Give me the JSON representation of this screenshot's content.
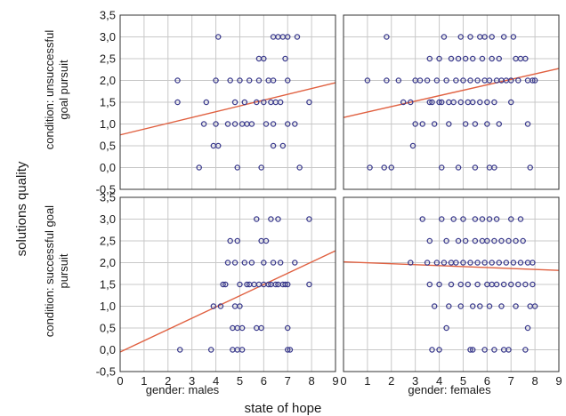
{
  "chart_data": {
    "type": "scatter",
    "ylabel": "solutions quality",
    "xlabel": "state of hope",
    "rows": [
      "condition: unsuccessful goal pursuit",
      "condition: successful goal pursuit"
    ],
    "columns": [
      "gender: males",
      "gender: females"
    ],
    "xlim": [
      0,
      9
    ],
    "ylim": [
      -0.5,
      3.5
    ],
    "xticks": [
      "0",
      "1",
      "2",
      "3",
      "4",
      "5",
      "6",
      "7",
      "8",
      "9"
    ],
    "yticks": [
      "-0,5",
      "0,0",
      "0,5",
      "1,0",
      "1,5",
      "2,0",
      "2,5",
      "3,0",
      "3,5"
    ],
    "grid": true,
    "colors": {
      "points": "#3a3a8c",
      "regression": "#e06040",
      "grid": "#c8c8c8",
      "frame": "#333333"
    },
    "panels": [
      {
        "row": 0,
        "col": 0,
        "regression": {
          "intercept": 0.75,
          "slope": 0.133
        },
        "points": [
          [
            2.4,
            2.0
          ],
          [
            2.4,
            1.5
          ],
          [
            3.5,
            1.0
          ],
          [
            3.3,
            0.0
          ],
          [
            3.6,
            1.5
          ],
          [
            3.9,
            0.5
          ],
          [
            4.1,
            0.5
          ],
          [
            4.0,
            1.0
          ],
          [
            4.0,
            2.0
          ],
          [
            4.1,
            3.0
          ],
          [
            4.5,
            1.0
          ],
          [
            4.6,
            2.0
          ],
          [
            4.8,
            1.5
          ],
          [
            4.8,
            1.0
          ],
          [
            4.9,
            0.0
          ],
          [
            5.0,
            2.0
          ],
          [
            5.1,
            1.0
          ],
          [
            5.2,
            1.5
          ],
          [
            5.3,
            1.0
          ],
          [
            5.4,
            2.0
          ],
          [
            5.5,
            1.0
          ],
          [
            5.7,
            1.5
          ],
          [
            5.8,
            2.0
          ],
          [
            5.8,
            2.5
          ],
          [
            5.9,
            0.0
          ],
          [
            6.0,
            1.5
          ],
          [
            6.0,
            2.5
          ],
          [
            6.1,
            1.0
          ],
          [
            6.2,
            2.0
          ],
          [
            6.3,
            1.5
          ],
          [
            6.4,
            2.0
          ],
          [
            6.4,
            0.5
          ],
          [
            6.4,
            1.0
          ],
          [
            6.4,
            3.0
          ],
          [
            6.5,
            1.5
          ],
          [
            6.6,
            3.0
          ],
          [
            6.7,
            1.5
          ],
          [
            6.8,
            0.5
          ],
          [
            6.8,
            3.0
          ],
          [
            6.9,
            2.5
          ],
          [
            7.0,
            3.0
          ],
          [
            7.0,
            1.0
          ],
          [
            7.0,
            2.0
          ],
          [
            7.3,
            1.0
          ],
          [
            7.4,
            3.0
          ],
          [
            7.5,
            0.0
          ],
          [
            7.9,
            1.5
          ]
        ]
      },
      {
        "row": 0,
        "col": 1,
        "regression": {
          "intercept": 1.15,
          "slope": 0.125
        },
        "points": [
          [
            1.0,
            2.0
          ],
          [
            1.1,
            0.0
          ],
          [
            1.7,
            0.0
          ],
          [
            1.8,
            3.0
          ],
          [
            1.8,
            2.0
          ],
          [
            2.0,
            0.0
          ],
          [
            2.3,
            2.0
          ],
          [
            2.5,
            1.5
          ],
          [
            2.8,
            1.5
          ],
          [
            2.9,
            0.5
          ],
          [
            3.0,
            2.0
          ],
          [
            3.0,
            1.0
          ],
          [
            3.2,
            2.0
          ],
          [
            3.3,
            1.0
          ],
          [
            3.5,
            2.0
          ],
          [
            3.6,
            1.5
          ],
          [
            3.6,
            2.5
          ],
          [
            3.7,
            1.5
          ],
          [
            3.8,
            1.0
          ],
          [
            3.9,
            2.0
          ],
          [
            4.0,
            1.5
          ],
          [
            4.0,
            2.5
          ],
          [
            4.1,
            1.5
          ],
          [
            4.1,
            0.0
          ],
          [
            4.2,
            3.0
          ],
          [
            4.3,
            2.0
          ],
          [
            4.4,
            1.5
          ],
          [
            4.4,
            1.0
          ],
          [
            4.5,
            2.5
          ],
          [
            4.6,
            1.5
          ],
          [
            4.7,
            2.0
          ],
          [
            4.8,
            2.5
          ],
          [
            4.8,
            0.0
          ],
          [
            4.9,
            1.5
          ],
          [
            4.9,
            3.0
          ],
          [
            5.0,
            2.0
          ],
          [
            5.1,
            2.5
          ],
          [
            5.1,
            1.0
          ],
          [
            5.2,
            1.5
          ],
          [
            5.3,
            2.0
          ],
          [
            5.3,
            3.0
          ],
          [
            5.4,
            2.5
          ],
          [
            5.4,
            1.5
          ],
          [
            5.5,
            1.0
          ],
          [
            5.5,
            0.0
          ],
          [
            5.6,
            2.0
          ],
          [
            5.7,
            3.0
          ],
          [
            5.7,
            1.5
          ],
          [
            5.8,
            2.5
          ],
          [
            5.9,
            2.0
          ],
          [
            5.9,
            3.0
          ],
          [
            6.0,
            1.5
          ],
          [
            6.0,
            1.0
          ],
          [
            6.1,
            0.0
          ],
          [
            6.1,
            2.0
          ],
          [
            6.2,
            2.5
          ],
          [
            6.2,
            3.0
          ],
          [
            6.3,
            0.0
          ],
          [
            6.3,
            1.5
          ],
          [
            6.4,
            2.0
          ],
          [
            6.5,
            1.0
          ],
          [
            6.5,
            2.5
          ],
          [
            6.6,
            2.0
          ],
          [
            6.7,
            3.0
          ],
          [
            6.8,
            2.0
          ],
          [
            7.0,
            2.0
          ],
          [
            7.0,
            1.5
          ],
          [
            7.1,
            3.0
          ],
          [
            7.2,
            2.5
          ],
          [
            7.3,
            2.0
          ],
          [
            7.4,
            2.5
          ],
          [
            7.6,
            2.5
          ],
          [
            7.7,
            2.0
          ],
          [
            7.7,
            1.0
          ],
          [
            7.8,
            0.0
          ],
          [
            7.9,
            2.0
          ],
          [
            8.0,
            2.0
          ]
        ]
      },
      {
        "row": 1,
        "col": 0,
        "regression": {
          "intercept": -0.05,
          "slope": 0.258
        },
        "points": [
          [
            2.5,
            0.0
          ],
          [
            3.8,
            0.0
          ],
          [
            3.9,
            1.0
          ],
          [
            4.2,
            1.0
          ],
          [
            4.3,
            1.5
          ],
          [
            4.4,
            1.5
          ],
          [
            4.5,
            2.0
          ],
          [
            4.6,
            2.5
          ],
          [
            4.7,
            0.0
          ],
          [
            4.7,
            0.5
          ],
          [
            4.8,
            1.0
          ],
          [
            4.8,
            2.0
          ],
          [
            4.9,
            2.5
          ],
          [
            4.9,
            0.5
          ],
          [
            4.9,
            0.0
          ],
          [
            5.0,
            1.5
          ],
          [
            5.0,
            1.0
          ],
          [
            5.1,
            0.5
          ],
          [
            5.1,
            0.0
          ],
          [
            5.2,
            2.0
          ],
          [
            5.3,
            1.5
          ],
          [
            5.4,
            1.5
          ],
          [
            5.5,
            2.0
          ],
          [
            5.6,
            1.5
          ],
          [
            5.7,
            0.5
          ],
          [
            5.7,
            3.0
          ],
          [
            5.8,
            1.5
          ],
          [
            5.9,
            2.5
          ],
          [
            5.9,
            0.5
          ],
          [
            6.0,
            1.5
          ],
          [
            6.0,
            2.0
          ],
          [
            6.1,
            2.5
          ],
          [
            6.2,
            1.5
          ],
          [
            6.3,
            1.5
          ],
          [
            6.3,
            3.0
          ],
          [
            6.4,
            2.0
          ],
          [
            6.5,
            1.5
          ],
          [
            6.6,
            1.5
          ],
          [
            6.6,
            3.0
          ],
          [
            6.7,
            2.0
          ],
          [
            6.8,
            1.5
          ],
          [
            6.9,
            1.5
          ],
          [
            7.0,
            1.5
          ],
          [
            7.0,
            0.5
          ],
          [
            7.0,
            0.0
          ],
          [
            7.1,
            0.0
          ],
          [
            7.3,
            2.0
          ],
          [
            7.9,
            3.0
          ],
          [
            7.9,
            1.5
          ]
        ]
      },
      {
        "row": 1,
        "col": 1,
        "regression": {
          "intercept": 2.02,
          "slope": -0.022
        },
        "points": [
          [
            2.8,
            2.0
          ],
          [
            3.3,
            3.0
          ],
          [
            3.5,
            2.0
          ],
          [
            3.6,
            1.5
          ],
          [
            3.6,
            2.5
          ],
          [
            3.7,
            0.0
          ],
          [
            3.8,
            1.0
          ],
          [
            3.9,
            2.0
          ],
          [
            4.0,
            1.5
          ],
          [
            4.0,
            0.0
          ],
          [
            4.1,
            3.0
          ],
          [
            4.2,
            2.0
          ],
          [
            4.3,
            2.5
          ],
          [
            4.3,
            0.5
          ],
          [
            4.4,
            1.0
          ],
          [
            4.5,
            2.0
          ],
          [
            4.5,
            1.5
          ],
          [
            4.6,
            3.0
          ],
          [
            4.7,
            2.0
          ],
          [
            4.8,
            2.5
          ],
          [
            4.9,
            1.0
          ],
          [
            4.9,
            1.5
          ],
          [
            5.0,
            3.0
          ],
          [
            5.0,
            2.0
          ],
          [
            5.1,
            2.5
          ],
          [
            5.2,
            1.5
          ],
          [
            5.3,
            0.0
          ],
          [
            5.3,
            2.0
          ],
          [
            5.4,
            1.0
          ],
          [
            5.4,
            0.0
          ],
          [
            5.5,
            3.0
          ],
          [
            5.5,
            2.5
          ],
          [
            5.6,
            2.0
          ],
          [
            5.6,
            1.5
          ],
          [
            5.7,
            1.0
          ],
          [
            5.8,
            2.5
          ],
          [
            5.8,
            3.0
          ],
          [
            5.9,
            2.0
          ],
          [
            5.9,
            0.0
          ],
          [
            6.0,
            1.5
          ],
          [
            6.0,
            2.5
          ],
          [
            6.1,
            3.0
          ],
          [
            6.1,
            1.0
          ],
          [
            6.2,
            2.0
          ],
          [
            6.2,
            1.5
          ],
          [
            6.3,
            2.5
          ],
          [
            6.3,
            0.0
          ],
          [
            6.4,
            3.0
          ],
          [
            6.4,
            1.5
          ],
          [
            6.5,
            2.0
          ],
          [
            6.6,
            1.0
          ],
          [
            6.6,
            2.5
          ],
          [
            6.7,
            0.0
          ],
          [
            6.7,
            1.5
          ],
          [
            6.8,
            2.0
          ],
          [
            6.9,
            2.5
          ],
          [
            6.9,
            0.0
          ],
          [
            7.0,
            3.0
          ],
          [
            7.0,
            1.5
          ],
          [
            7.1,
            2.0
          ],
          [
            7.2,
            2.5
          ],
          [
            7.2,
            1.0
          ],
          [
            7.3,
            1.5
          ],
          [
            7.4,
            2.0
          ],
          [
            7.4,
            3.0
          ],
          [
            7.5,
            2.5
          ],
          [
            7.6,
            1.5
          ],
          [
            7.7,
            2.0
          ],
          [
            7.7,
            0.5
          ],
          [
            7.8,
            1.0
          ],
          [
            7.9,
            2.0
          ],
          [
            7.9,
            1.5
          ],
          [
            8.0,
            1.0
          ],
          [
            7.6,
            0.0
          ]
        ]
      }
    ]
  }
}
